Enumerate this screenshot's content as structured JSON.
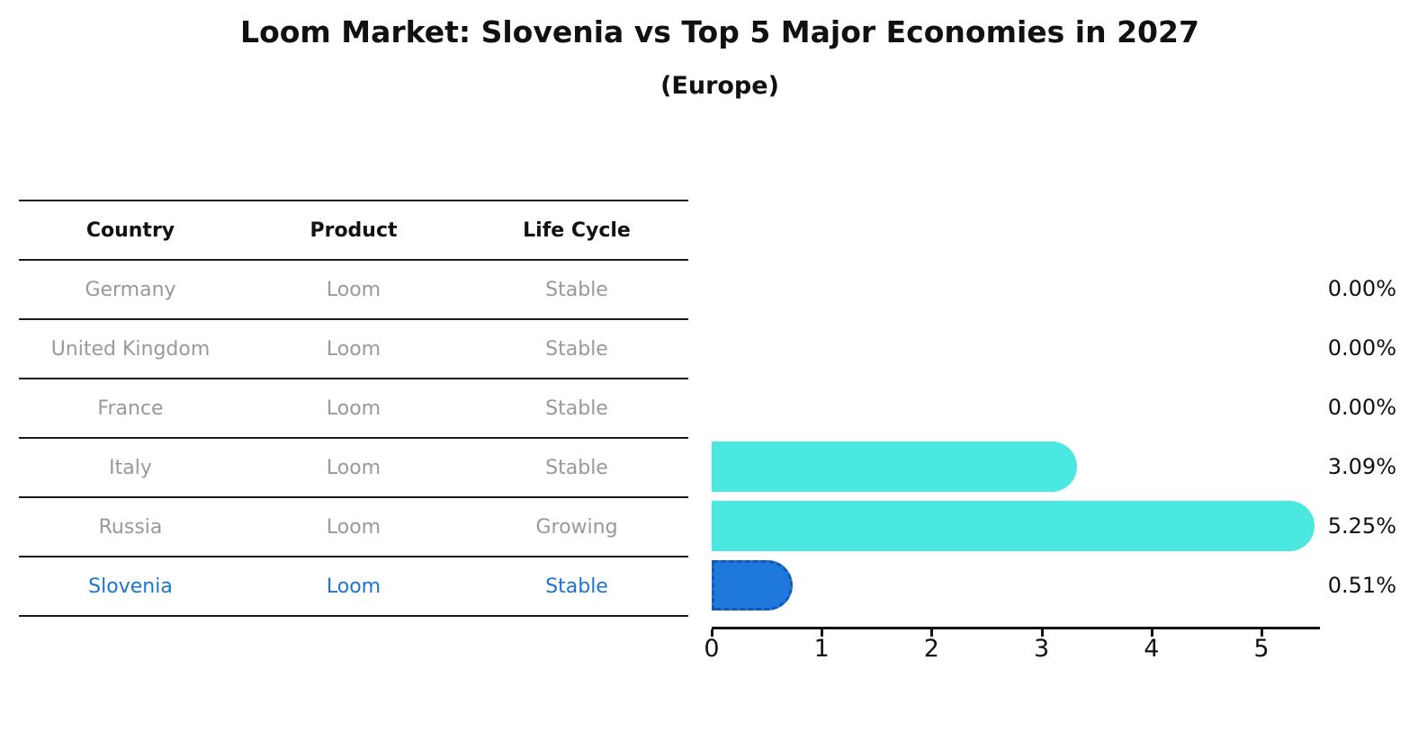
{
  "title": "Loom Market: Slovenia vs Top 5 Major Economies in 2027",
  "subtitle": "(Europe)",
  "table": {
    "headers": [
      "Country",
      "Product",
      "Life Cycle"
    ],
    "rows": [
      {
        "country": "Germany",
        "product": "Loom",
        "life_cycle": "Stable",
        "highlight": false
      },
      {
        "country": "United Kingdom",
        "product": "Loom",
        "life_cycle": "Stable",
        "highlight": false
      },
      {
        "country": "France",
        "product": "Loom",
        "life_cycle": "Stable",
        "highlight": false
      },
      {
        "country": "Italy",
        "product": "Loom",
        "life_cycle": "Stable",
        "highlight": false
      },
      {
        "country": "Russia",
        "product": "Loom",
        "life_cycle": "Growing",
        "highlight": false
      },
      {
        "country": "Slovenia",
        "product": "Loom",
        "life_cycle": "Stable",
        "highlight": true
      }
    ]
  },
  "chart_data": {
    "type": "bar",
    "orientation": "horizontal",
    "title": "Loom Market: Slovenia vs Top 5 Major Economies in 2027",
    "subtitle": "(Europe)",
    "categories": [
      "Germany",
      "United Kingdom",
      "France",
      "Italy",
      "Russia",
      "Slovenia"
    ],
    "values": [
      0.0,
      0.0,
      0.0,
      3.09,
      5.25,
      0.51
    ],
    "value_labels": [
      "0.00%",
      "0.00%",
      "0.00%",
      "3.09%",
      "5.25%",
      "0.51%"
    ],
    "x_ticks": [
      0,
      1,
      2,
      3,
      4,
      5
    ],
    "xlim": [
      0,
      5.53
    ],
    "grid": false,
    "legend": "none",
    "highlight_index": 5
  },
  "colors": {
    "bar_default": "#4ae8e0",
    "bar_highlight": "#1f78db",
    "bar_highlight_border": "#1058bd",
    "highlight_text": "#1b74d1",
    "table_text": "#999999",
    "axis_text": "#111111"
  }
}
